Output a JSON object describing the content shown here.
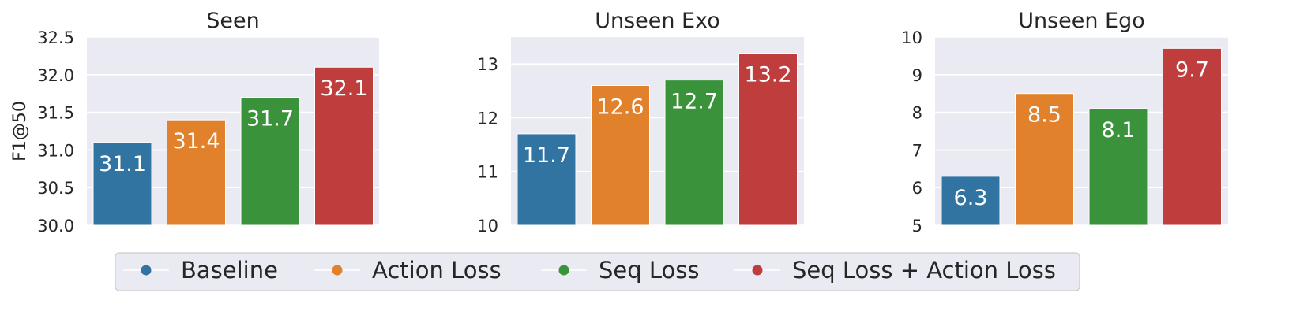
{
  "colors": {
    "baseline": "#3274a1",
    "action_loss": "#e1812c",
    "seq_loss": "#3a923a",
    "seq_action_loss": "#c03d3e",
    "panel_bg": "#eaeaf2",
    "grid": "#ffffff",
    "text": "#262626"
  },
  "legend": {
    "items": [
      "Baseline",
      "Action Loss",
      "Seq Loss",
      "Seq Loss + Action Loss"
    ],
    "placement": "bottom-center"
  },
  "chart_data": [
    {
      "type": "bar",
      "title": "Seen",
      "ylabel": "F1@50",
      "ylim": [
        30.0,
        32.5
      ],
      "yticks": [
        "30.0",
        "30.5",
        "31.0",
        "31.5",
        "32.0",
        "32.5"
      ],
      "grid": true,
      "categories": [
        "Baseline",
        "Action Loss",
        "Seq Loss",
        "Seq Loss + Action Loss"
      ],
      "values": [
        31.1,
        31.4,
        31.7,
        32.1
      ],
      "labels": [
        "31.1",
        "31.4",
        "31.7",
        "32.1"
      ]
    },
    {
      "type": "bar",
      "title": "Unseen Exo",
      "ylabel": "",
      "ylim": [
        10,
        13.5
      ],
      "yticks": [
        "10",
        "11",
        "12",
        "13"
      ],
      "grid": true,
      "categories": [
        "Baseline",
        "Action Loss",
        "Seq Loss",
        "Seq Loss + Action Loss"
      ],
      "values": [
        11.7,
        12.6,
        12.7,
        13.2
      ],
      "labels": [
        "11.7",
        "12.6",
        "12.7",
        "13.2"
      ]
    },
    {
      "type": "bar",
      "title": "Unseen Ego",
      "ylabel": "",
      "ylim": [
        5,
        10
      ],
      "yticks": [
        "5",
        "6",
        "7",
        "8",
        "9",
        "10"
      ],
      "grid": true,
      "categories": [
        "Baseline",
        "Action Loss",
        "Seq Loss",
        "Seq Loss + Action Loss"
      ],
      "values": [
        6.3,
        8.5,
        8.1,
        9.7
      ],
      "labels": [
        "6.3",
        "8.5",
        "8.1",
        "9.7"
      ]
    }
  ]
}
